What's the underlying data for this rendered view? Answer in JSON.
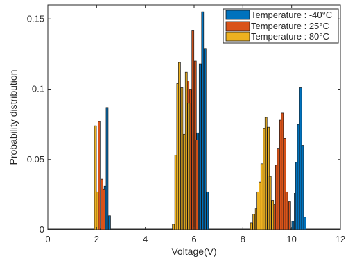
{
  "chart_data": {
    "type": "bar",
    "title": "",
    "xlabel": "Voltage(V)",
    "ylabel": "Probability distribution",
    "xlim": [
      0,
      12
    ],
    "ylim": [
      0,
      0.16
    ],
    "xticks": [
      0,
      2,
      4,
      6,
      8,
      10,
      12
    ],
    "xtick_labels": [
      "0",
      "2",
      "4",
      "6",
      "8",
      "10",
      "12"
    ],
    "yticks": [
      0,
      0.05,
      0.1,
      0.15
    ],
    "ytick_labels": [
      "0",
      "0.05",
      "0.1",
      "0.15"
    ],
    "bin_width": 0.085,
    "grid": false,
    "legend_position": "top-right",
    "series": [
      {
        "name": "Temperature : -40°C",
        "color": "#0072BD",
        "points": [
          [
            2.35,
            0.031
          ],
          [
            2.43,
            0.087
          ],
          [
            2.53,
            0.01
          ],
          [
            6.15,
            0.069
          ],
          [
            6.25,
            0.118
          ],
          [
            6.35,
            0.155
          ],
          [
            6.45,
            0.129
          ],
          [
            6.55,
            0.027
          ],
          [
            10.05,
            0.006
          ],
          [
            10.15,
            0.026
          ],
          [
            10.2,
            0.048
          ],
          [
            10.28,
            0.075
          ],
          [
            10.37,
            0.101
          ],
          [
            10.45,
            0.06
          ],
          [
            10.55,
            0.009
          ]
        ]
      },
      {
        "name": "Temperature : 25°C",
        "color": "#D95319",
        "points": [
          [
            2.1,
            0.077
          ],
          [
            2.22,
            0.036
          ],
          [
            2.3,
            0.029
          ],
          [
            5.75,
            0.106
          ],
          [
            5.85,
            0.1
          ],
          [
            5.95,
            0.142
          ],
          [
            6.05,
            0.12
          ],
          [
            6.12,
            0.064
          ],
          [
            9.28,
            0.018
          ],
          [
            9.38,
            0.046
          ],
          [
            9.45,
            0.058
          ],
          [
            9.55,
            0.078
          ],
          [
            9.62,
            0.083
          ],
          [
            9.72,
            0.065
          ],
          [
            9.8,
            0.027
          ],
          [
            9.92,
            0.02
          ]
        ]
      },
      {
        "name": "Temperature : 80°C",
        "color": "#EDB120",
        "points": [
          [
            1.95,
            0.074
          ],
          [
            2.03,
            0.027
          ],
          [
            5.15,
            0.004
          ],
          [
            5.25,
            0.053
          ],
          [
            5.33,
            0.104
          ],
          [
            5.4,
            0.119
          ],
          [
            5.5,
            0.101
          ],
          [
            5.6,
            0.068
          ],
          [
            5.68,
            0.112
          ],
          [
            5.78,
            0.09
          ],
          [
            8.35,
            0.005
          ],
          [
            8.45,
            0.011
          ],
          [
            8.55,
            0.015
          ],
          [
            8.62,
            0.027
          ],
          [
            8.7,
            0.034
          ],
          [
            8.78,
            0.047
          ],
          [
            8.88,
            0.072
          ],
          [
            8.95,
            0.08
          ],
          [
            9.05,
            0.073
          ],
          [
            9.12,
            0.038
          ],
          [
            9.22,
            0.021
          ]
        ]
      }
    ]
  }
}
